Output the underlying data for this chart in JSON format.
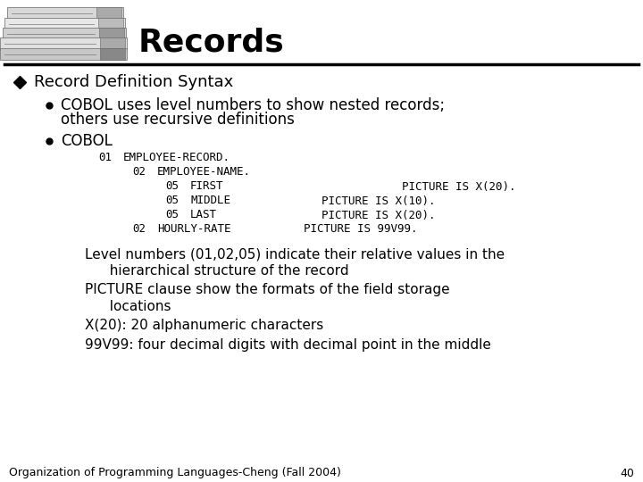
{
  "title": "Records",
  "bg_color": "#ffffff",
  "title_color": "#000000",
  "separator_color": "#000000",
  "bullet1": "Record Definition Syntax",
  "sub_bullet1a": "COBOL uses level numbers to show nested records;",
  "sub_bullet1b": "others use recursive definitions",
  "sub_bullet2": "COBOL",
  "footer": "Organization of Programming Languages-Cheng (Fall 2004)",
  "page_number": "40",
  "footer_color": "#000000",
  "code": [
    {
      "indent": 0,
      "num": "01",
      "name": "EMPLOYEE-RECORD.",
      "pic": ""
    },
    {
      "indent": 1,
      "num": "02",
      "name": "EMPLOYEE-NAME.",
      "pic": ""
    },
    {
      "indent": 2,
      "num": "05",
      "name": "FIRST",
      "pic": "PICTURE IS X(20)."
    },
    {
      "indent": 2,
      "num": "05",
      "name": "MIDDLE",
      "pic": "PICTURE IS X(10)."
    },
    {
      "indent": 2,
      "num": "05",
      "name": "LAST",
      "pic": "PICTURE IS X(20)."
    },
    {
      "indent": 1,
      "num": "02",
      "name": "HOURLY-RATE",
      "pic": "PICTURE IS 99V99."
    }
  ],
  "notes": [
    [
      "Level numbers (01,02,05) indicate their relative values in the",
      "  hierarchical structure of the record"
    ],
    [
      "PICTURE clause show the formats of the field storage",
      "  locations"
    ],
    [
      "X(20): 20 alphanumeric characters"
    ],
    [
      "99V99: four decimal digits with decimal point in the middle"
    ]
  ]
}
